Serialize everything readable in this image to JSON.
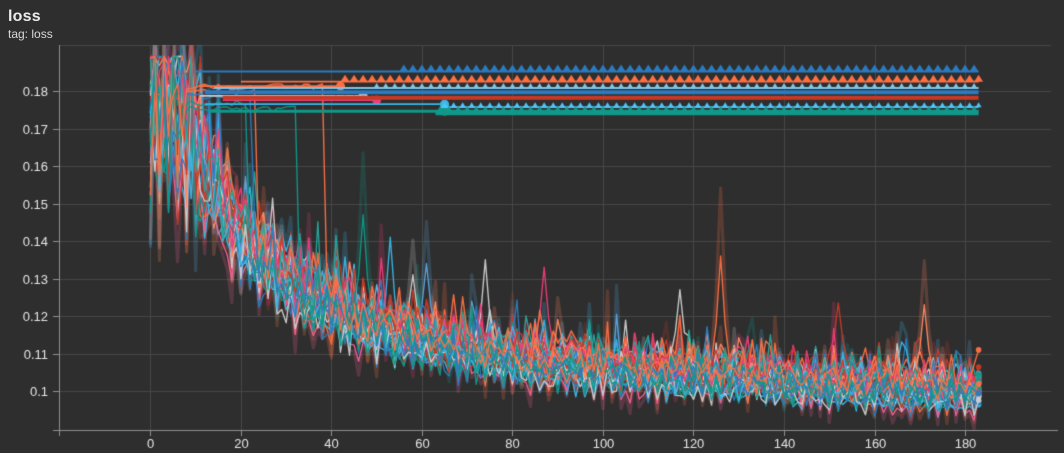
{
  "header": {
    "title": "loss",
    "subtitle": "tag: loss"
  },
  "colors": {
    "background": "#2e2e2e",
    "grid": "#474747",
    "axis": "#8f8f8f",
    "tick_text": "#e5e5e5"
  },
  "chart_data": {
    "type": "line",
    "title": "loss",
    "subtitle": "tag: loss",
    "xlabel": "",
    "ylabel": "",
    "grid": true,
    "legend": "none",
    "xlim": [
      -20.2,
      199
    ],
    "ylim": [
      0.0896,
      0.19227
    ],
    "x_end": 183,
    "x_ticks": [
      0,
      20,
      40,
      60,
      80,
      100,
      120,
      140,
      160,
      180
    ],
    "x_tick_labels": [
      "0",
      "20",
      "40",
      "60",
      "80",
      "100",
      "120",
      "140",
      "160",
      "180"
    ],
    "y_ticks": [
      0.1,
      0.11,
      0.12,
      0.13,
      0.14,
      0.15,
      0.16,
      0.17,
      0.18
    ],
    "y_tick_labels": [
      "0.1",
      "0.11",
      "0.12",
      "0.13",
      "0.14",
      "0.15",
      "0.16",
      "0.17",
      "0.18"
    ],
    "palette": {
      "orange": "#ff7043",
      "orange_light": "#ff8a65",
      "blue": "#2b7bc0",
      "blue_light": "#5aa7dd",
      "red": "#c63a27",
      "red_dark": "#b03323",
      "cyan": "#3ab7e6",
      "cyan_light": "#4fc3f7",
      "magenta": "#ee3d78",
      "pink": "#f06292",
      "teal": "#10998a",
      "teal_light": "#26a69a",
      "gray": "#cdcdcd",
      "ltblue": "#7cc5e8"
    },
    "median_curve": {
      "x": [
        0,
        4,
        8,
        12,
        16,
        20,
        25,
        30,
        35,
        40,
        45,
        50,
        55,
        60,
        70,
        80,
        90,
        100,
        110,
        120,
        130,
        140,
        150,
        160,
        170,
        183
      ],
      "y": [
        0.176,
        0.173,
        0.168,
        0.158,
        0.149,
        0.141,
        0.134,
        0.129,
        0.125,
        0.1215,
        0.1185,
        0.116,
        0.114,
        0.1125,
        0.11,
        0.108,
        0.1065,
        0.1055,
        0.1045,
        0.1035,
        0.1028,
        0.102,
        0.1012,
        0.1005,
        0.0998,
        0.0992
      ]
    },
    "flat_runs": [
      {
        "value": 0.1787,
        "color": "#cdcdcd",
        "from": 11,
        "to": 47,
        "dot_at": 47
      },
      {
        "value": 0.1776,
        "color": "#ee3d78",
        "from": 16,
        "to": 50,
        "teeth_from": 41,
        "teeth_size": "s",
        "dot_at": 50
      },
      {
        "value": 0.1765,
        "color": "#3ab7e6",
        "from": 12,
        "to": 65,
        "dot_at": 65
      },
      {
        "value": 0.1813,
        "color": "#ff7043",
        "from": 11,
        "to": 42,
        "dot_at": 42
      },
      {
        "value": 0.1746,
        "color": "#10998a",
        "from": 13,
        "to": 183,
        "thick": 3,
        "dot_at": 65
      },
      {
        "value": 0.1808,
        "color": "#7cc5e8",
        "from": 14,
        "to": 183,
        "teeth_from": 50,
        "teeth_size": "s"
      },
      {
        "value": 0.1797,
        "color": "#2b7bc0",
        "from": 12,
        "to": 183,
        "thick": 4
      },
      {
        "value": 0.1782,
        "color": "#c63a27",
        "from": 16,
        "to": 183,
        "thick": 4
      },
      {
        "value": 0.1757,
        "color": "#4fc3f7",
        "from": 64,
        "to": 183,
        "teeth_from": 65,
        "teeth_size": "s"
      },
      {
        "value": 0.1741,
        "color": "#10998a",
        "from": 63,
        "to": 183,
        "thick": 4,
        "teeth_from": 64
      },
      {
        "value": 0.1825,
        "color": "#ff7043",
        "from": 20,
        "to": 183,
        "teeth_from": 43
      },
      {
        "value": 0.1852,
        "color": "#2b7bc0",
        "from": 10,
        "to": 183,
        "teeth_from": 56
      }
    ],
    "noisy_runs": [
      {
        "seed": 11,
        "color": "#ff7043",
        "off": 0.0,
        "fade": true
      },
      {
        "seed": 12,
        "color": "#2b7bc0",
        "off": -0.01
      },
      {
        "seed": 13,
        "color": "#c63a27",
        "off": 0.008,
        "fade": true
      },
      {
        "seed": 14,
        "color": "#3ab7e6",
        "off": -0.022
      },
      {
        "seed": 15,
        "color": "#ee3d78",
        "off": 0.015
      },
      {
        "seed": 16,
        "color": "#10998a",
        "off": -0.005,
        "fade": true
      },
      {
        "seed": 17,
        "color": "#cdcdcd",
        "off": 0.025
      },
      {
        "seed": 18,
        "color": "#ff8a65",
        "off": 0.033
      },
      {
        "seed": 19,
        "color": "#5aa7dd",
        "off": 0.012,
        "fade": true
      },
      {
        "seed": 20,
        "color": "#b03323",
        "off": -0.015,
        "calm": true
      },
      {
        "seed": 21,
        "color": "#4fc3f7",
        "off": 0.02
      },
      {
        "seed": 22,
        "color": "#f06292",
        "off": -0.028,
        "fade": true
      },
      {
        "seed": 23,
        "color": "#26a69a",
        "off": 0.04
      },
      {
        "seed": 24,
        "color": "#cdcdcd",
        "off": -0.008
      },
      {
        "seed": 25,
        "color": "#ff7043",
        "off": -0.02,
        "fade": true
      },
      {
        "seed": 26,
        "color": "#2b7bc0",
        "off": 0.028
      },
      {
        "seed": 27,
        "color": "#c63a27",
        "off": 0.045
      },
      {
        "seed": 28,
        "color": "#3ab7e6",
        "off": -0.034,
        "calm": true
      },
      {
        "seed": 29,
        "color": "#ee3d78",
        "off": 0.005,
        "fade": true
      },
      {
        "seed": 30,
        "color": "#10998a",
        "off": -0.018
      },
      {
        "seed": 31,
        "color": "#cdcdcd",
        "off": 0.01,
        "fade": true
      },
      {
        "seed": 32,
        "color": "#ff7043",
        "off": 0.048
      },
      {
        "seed": 33,
        "color": "#2b7bc0",
        "off": -0.03
      },
      {
        "seed": 34,
        "color": "#c63a27",
        "off": -0.002
      },
      {
        "seed": 35,
        "color": "#3ab7e6",
        "off": 0.036,
        "fade": true
      },
      {
        "seed": 36,
        "color": "#ee3d78",
        "off": 0.022
      },
      {
        "seed": 37,
        "color": "#10998a",
        "off": -0.012
      },
      {
        "seed": 38,
        "color": "#cdcdcd",
        "off": -0.025
      },
      {
        "seed": 39,
        "color": "#ff8a65",
        "off": 0.018,
        "fade": true
      },
      {
        "seed": 40,
        "color": "#2b7bc0",
        "off": 0.002
      },
      {
        "seed": 41,
        "color": "#c63a27",
        "off": 0.03
      },
      {
        "seed": 42,
        "color": "#3ab7e6",
        "off": -0.006
      },
      {
        "seed": 43,
        "color": "#ee3d78",
        "off": 0.032,
        "fade": true
      },
      {
        "seed": 44,
        "color": "#26a69a",
        "off": 0.026
      },
      {
        "seed": 45,
        "color": "#10998a",
        "off": -0.01,
        "hold": 0.1768,
        "drop": 22
      },
      {
        "seed": 46,
        "color": "#ff7043",
        "off": 0.01,
        "hold": 0.1802,
        "drop": 24
      },
      {
        "seed": 47,
        "color": "#2b7bc0",
        "off": 0.005,
        "hold": 0.1786,
        "drop": 23
      },
      {
        "seed": 49,
        "color": "#10998a",
        "off": 0.006,
        "hold": 0.1752,
        "drop": 33
      },
      {
        "seed": 48,
        "color": "#ff7043",
        "off": 0.024,
        "hold": 0.1812,
        "drop": 39
      }
    ],
    "feature_spikes": [
      {
        "run": 0,
        "step": 126,
        "value": 0.136
      },
      {
        "run": 6,
        "step": 117,
        "value": 0.127
      },
      {
        "run": 13,
        "step": 74,
        "value": 0.135
      },
      {
        "run": 20,
        "step": 58,
        "value": 0.131
      },
      {
        "run": 5,
        "step": 47,
        "value": 0.147
      },
      {
        "run": 3,
        "step": 53,
        "value": 0.141
      },
      {
        "run": 4,
        "step": 87,
        "value": 0.133
      },
      {
        "run": 16,
        "step": 152,
        "value": 0.1235
      },
      {
        "run": 28,
        "step": 171,
        "value": 0.123
      },
      {
        "run": 8,
        "step": 61,
        "value": 0.134
      }
    ]
  }
}
